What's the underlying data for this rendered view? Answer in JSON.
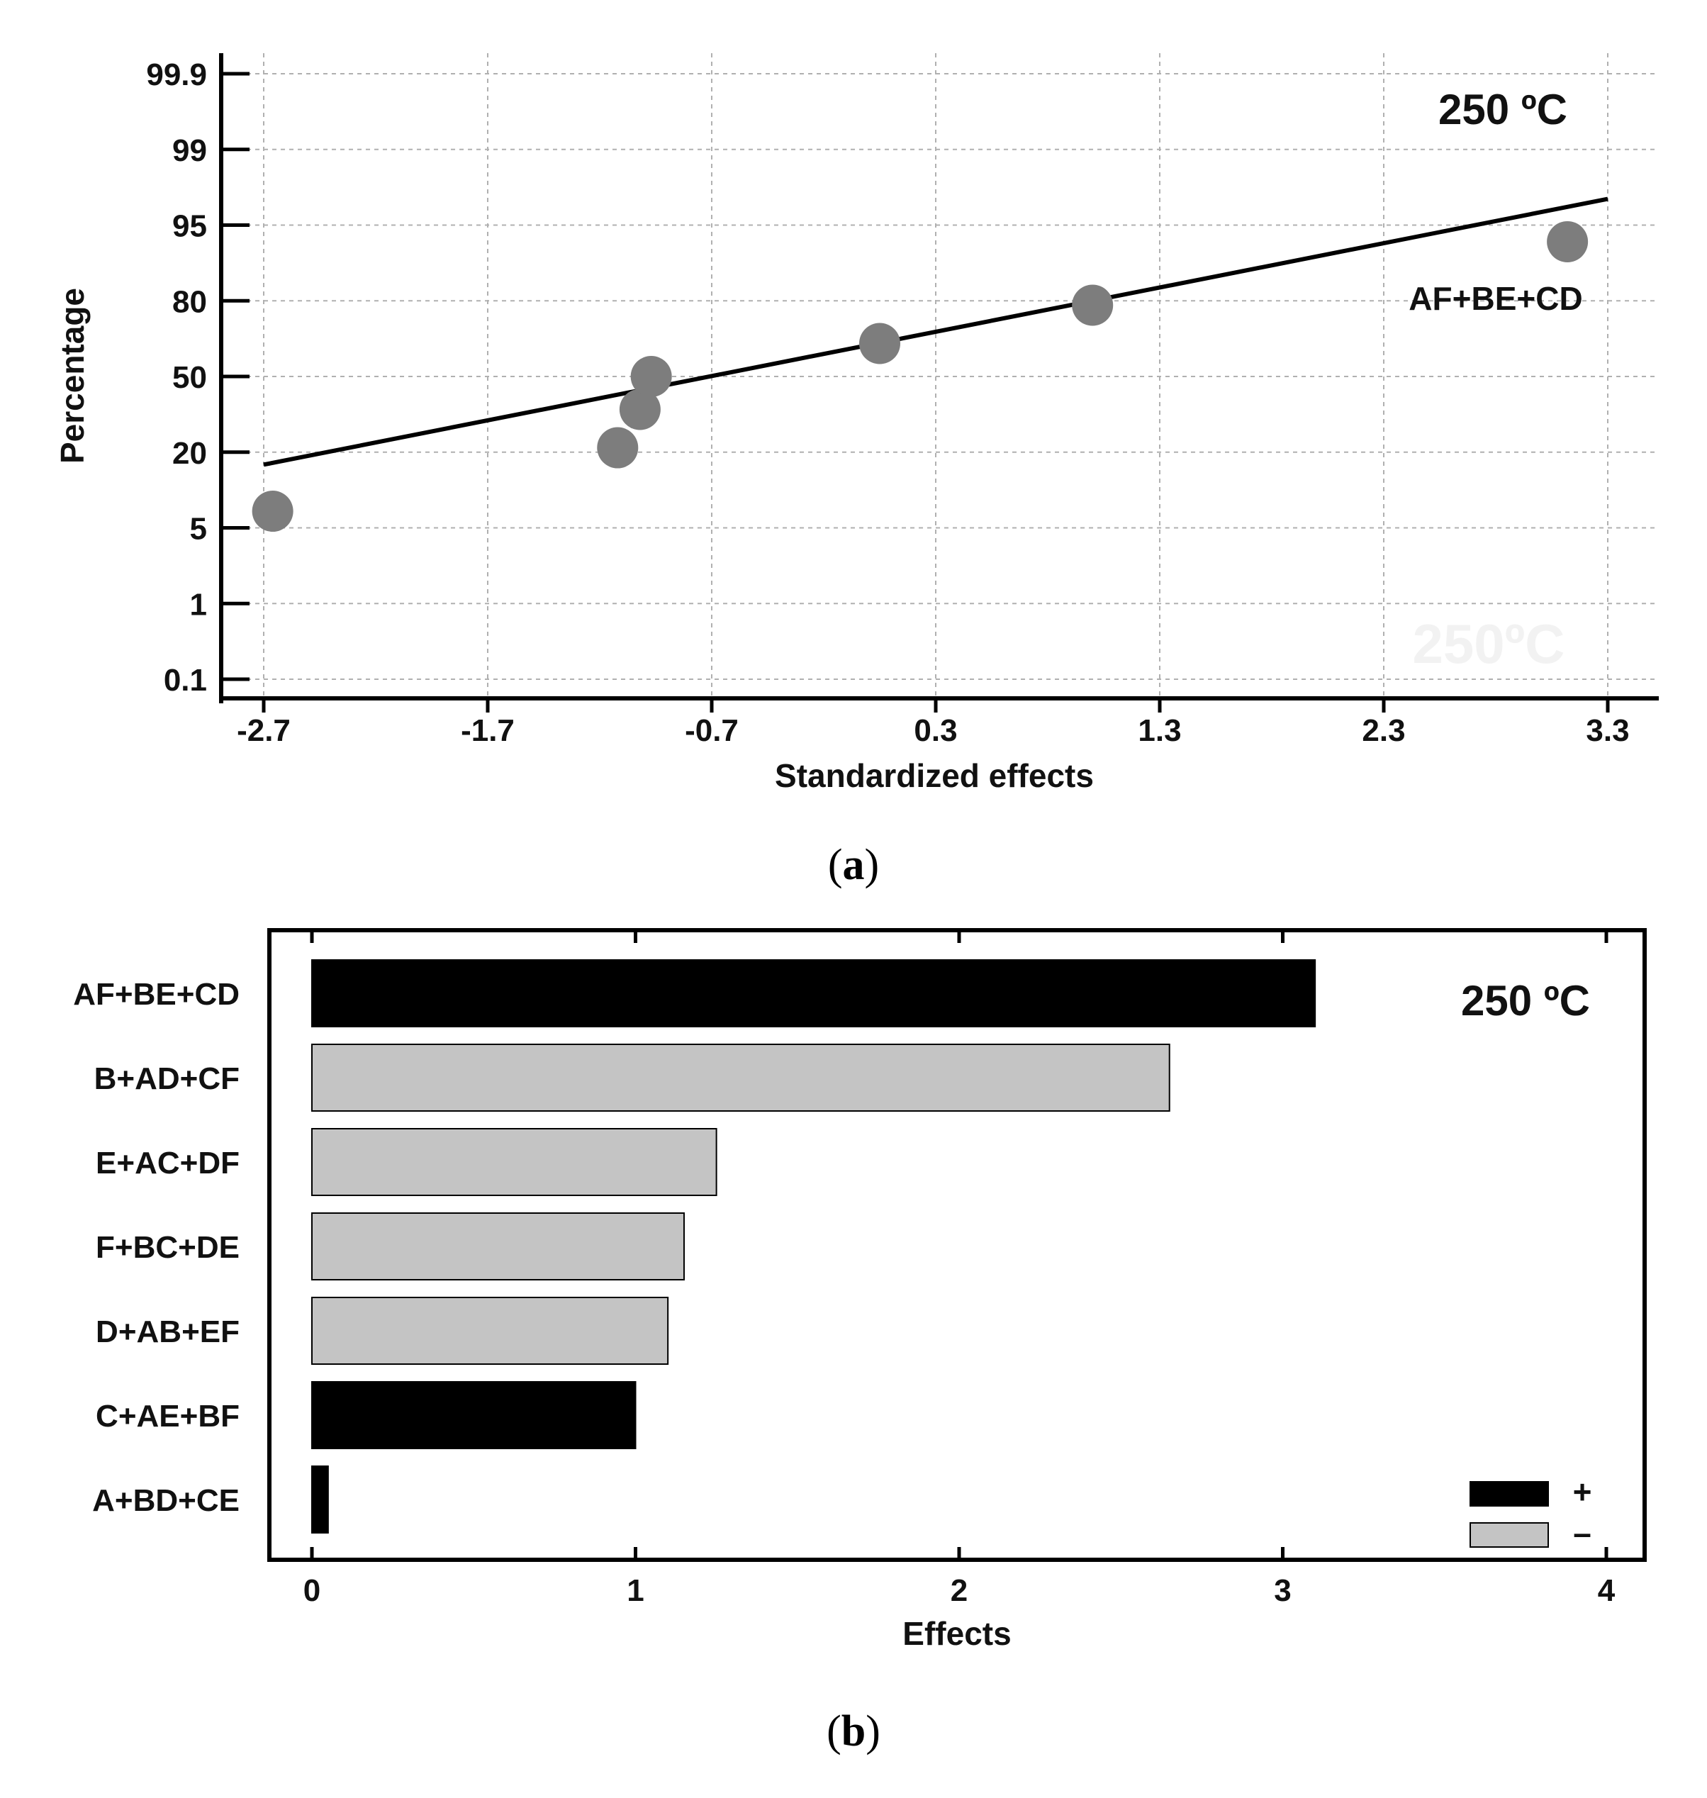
{
  "chart_data": [
    {
      "type": "scatter",
      "title": "250 ºC",
      "xlabel": "Standardized effects",
      "ylabel": "Percentage",
      "x_ticks": [
        "-2.7",
        "-1.7",
        "-0.7",
        "0.3",
        "1.3",
        "2.3",
        "3.3"
      ],
      "x_tick_values": [
        -2.7,
        -1.7,
        -0.7,
        0.3,
        1.3,
        2.3,
        3.3
      ],
      "xlim": [
        -2.88,
        3.5
      ],
      "y_ticks": [
        "99.9",
        "99",
        "95",
        "80",
        "50",
        "20",
        "5",
        "1",
        "0.1"
      ],
      "y_scale": "normal-probability",
      "points": [
        {
          "x": -2.66,
          "y": 7.1
        },
        {
          "x": -1.12,
          "y": 21.4
        },
        {
          "x": -1.02,
          "y": 35.7
        },
        {
          "x": -0.97,
          "y": 50.0
        },
        {
          "x": 0.05,
          "y": 64.3
        },
        {
          "x": 1.0,
          "y": 78.6
        },
        {
          "x": 3.12,
          "y": 92.9
        }
      ],
      "fit_line": {
        "x": [
          -2.7,
          3.3
        ],
        "y": [
          16.5,
          97.0
        ]
      },
      "annotation": "AF+BE+CD",
      "watermark": "250ºC",
      "caption": "(a)",
      "caption_letter": "a"
    },
    {
      "type": "bar",
      "orientation": "horizontal",
      "title": "250 ºC",
      "xlabel": "Effects",
      "categories": [
        "AF+BE+CD",
        "B+AD+CF",
        "E+AC+DF",
        "F+BC+DE",
        "D+AB+EF",
        "C+AE+BF",
        "A+BD+CE"
      ],
      "values": [
        3.1,
        2.65,
        1.25,
        1.15,
        1.1,
        1.0,
        0.05
      ],
      "signs": [
        "+",
        "-",
        "-",
        "-",
        "-",
        "+",
        "+"
      ],
      "x_ticks": [
        "0",
        "1",
        "2",
        "3",
        "4"
      ],
      "x_tick_values": [
        0,
        1,
        2,
        3,
        4
      ],
      "xlim": [
        -0.13,
        4.12
      ],
      "legend": [
        {
          "label": "+",
          "color": "#000000"
        },
        {
          "label": "–",
          "color": "#c4c4c4"
        }
      ],
      "legend_position": "bottom-right",
      "caption": "(b)",
      "caption_letter": "b"
    }
  ],
  "colors": {
    "point": "#7d7d7d",
    "positive_bar": "#000000",
    "negative_bar": "#c4c4c4",
    "grid": "#b0b0b0"
  }
}
